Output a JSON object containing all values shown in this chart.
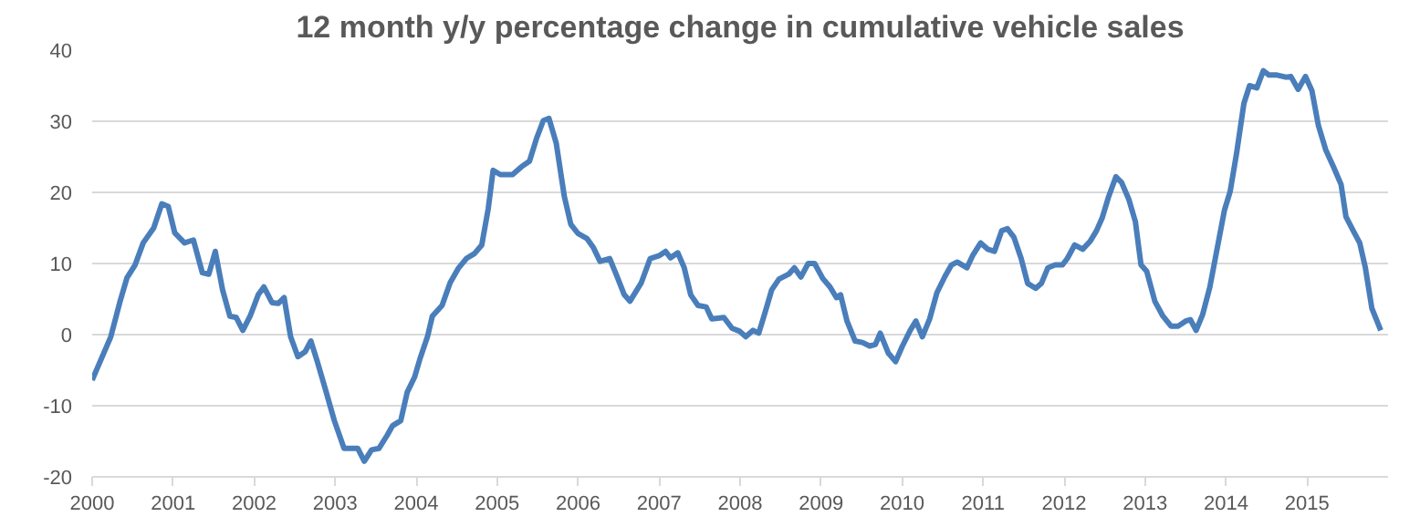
{
  "chart_data": {
    "type": "line",
    "title": "12 month y/y percentage change in cumulative vehicle sales",
    "x": [
      2000.0,
      2000.23,
      2000.34,
      2000.43,
      2000.53,
      2000.63,
      2000.76,
      2000.86,
      2000.94,
      2001.02,
      2001.14,
      2001.25,
      2001.36,
      2001.44,
      2001.52,
      2001.61,
      2001.7,
      2001.78,
      2001.86,
      2001.95,
      2002.05,
      2002.12,
      2002.22,
      2002.3,
      2002.37,
      2002.45,
      2002.54,
      2002.63,
      2002.7,
      2002.78,
      2002.88,
      2002.99,
      2003.11,
      2003.28,
      2003.36,
      2003.45,
      2003.54,
      2003.64,
      2003.71,
      2003.81,
      2003.89,
      2003.98,
      2004.05,
      2004.14,
      2004.2,
      2004.32,
      2004.42,
      2004.52,
      2004.62,
      2004.72,
      2004.81,
      2004.89,
      2004.95,
      2005.04,
      2005.19,
      2005.3,
      2005.4,
      2005.49,
      2005.57,
      2005.64,
      2005.73,
      2005.83,
      2005.91,
      2006.0,
      2006.11,
      2006.19,
      2006.27,
      2006.39,
      2006.48,
      2006.57,
      2006.64,
      2006.78,
      2006.89,
      2007.0,
      2007.08,
      2007.14,
      2007.23,
      2007.31,
      2007.39,
      2007.48,
      2007.58,
      2007.65,
      2007.8,
      2007.9,
      2007.99,
      2008.07,
      2008.16,
      2008.23,
      2008.3,
      2008.39,
      2008.48,
      2008.6,
      2008.67,
      2008.75,
      2008.84,
      2008.92,
      2009.02,
      2009.11,
      2009.19,
      2009.24,
      2009.32,
      2009.42,
      2009.51,
      2009.6,
      2009.67,
      2009.73,
      2009.83,
      2009.92,
      2010.0,
      2010.1,
      2010.17,
      2010.25,
      2010.34,
      2010.43,
      2010.53,
      2010.61,
      2010.68,
      2010.8,
      2010.87,
      2010.97,
      2011.06,
      2011.14,
      2011.23,
      2011.3,
      2011.38,
      2011.47,
      2011.55,
      2011.65,
      2011.72,
      2011.8,
      2011.89,
      2011.98,
      2012.04,
      2012.13,
      2012.23,
      2012.32,
      2012.4,
      2012.47,
      2012.55,
      2012.64,
      2012.71,
      2012.8,
      2012.88,
      2012.95,
      2013.02,
      2013.12,
      2013.22,
      2013.32,
      2013.41,
      2013.5,
      2013.56,
      2013.63,
      2013.71,
      2013.8,
      2013.88,
      2013.98,
      2014.05,
      2014.13,
      2014.22,
      2014.29,
      2014.38,
      2014.46,
      2014.53,
      2014.63,
      2014.74,
      2014.8,
      2014.89,
      2014.98,
      2015.06,
      2015.14,
      2015.23,
      2015.33,
      2015.42,
      2015.48,
      2015.57,
      2015.65,
      2015.72,
      2015.8,
      2015.91
    ],
    "series": [
      {
        "color": "#4a7ebb",
        "values": [
          -6.4,
          -0.3,
          4.5,
          8.0,
          9.8,
          12.9,
          15.0,
          18.4,
          18.0,
          14.3,
          12.9,
          13.3,
          8.7,
          8.5,
          11.7,
          6.3,
          2.6,
          2.4,
          0.6,
          2.6,
          5.6,
          6.7,
          4.5,
          4.4,
          5.2,
          -0.3,
          -3.1,
          -2.4,
          -0.9,
          -3.8,
          -7.7,
          -12.1,
          -16.0,
          -16.0,
          -17.8,
          -16.2,
          -16.0,
          -14.2,
          -12.8,
          -12.1,
          -8.1,
          -6.0,
          -3.3,
          -0.3,
          2.6,
          4.1,
          7.3,
          9.3,
          10.7,
          11.4,
          12.6,
          17.7,
          23.1,
          22.5,
          22.5,
          23.6,
          24.4,
          27.7,
          30.1,
          30.4,
          26.9,
          19.4,
          15.5,
          14.2,
          13.5,
          12.2,
          10.3,
          10.7,
          8.2,
          5.6,
          4.7,
          7.3,
          10.7,
          11.1,
          11.7,
          10.8,
          11.5,
          9.4,
          5.6,
          4.1,
          3.9,
          2.2,
          2.4,
          0.9,
          0.5,
          -0.3,
          0.6,
          0.2,
          2.8,
          6.3,
          7.8,
          8.5,
          9.4,
          8.1,
          10.0,
          10.0,
          7.9,
          6.7,
          5.2,
          5.6,
          1.9,
          -0.9,
          -1.1,
          -1.6,
          -1.4,
          0.2,
          -2.6,
          -3.8,
          -1.7,
          0.6,
          1.9,
          -0.3,
          2.2,
          5.9,
          8.2,
          9.8,
          10.2,
          9.4,
          11.1,
          12.9,
          12.0,
          11.7,
          14.6,
          14.9,
          13.7,
          10.7,
          7.2,
          6.5,
          7.2,
          9.4,
          9.8,
          9.8,
          10.7,
          12.6,
          12.0,
          13.1,
          14.6,
          16.4,
          19.4,
          22.2,
          21.4,
          19.0,
          15.9,
          9.8,
          8.9,
          4.7,
          2.6,
          1.2,
          1.2,
          1.9,
          2.1,
          0.6,
          2.8,
          6.7,
          11.5,
          17.5,
          20.1,
          25.5,
          32.5,
          35.0,
          34.7,
          37.1,
          36.5,
          36.5,
          36.2,
          36.3,
          34.5,
          36.3,
          34.3,
          29.4,
          26.0,
          23.5,
          21.1,
          16.6,
          14.6,
          12.9,
          9.4,
          3.7,
          0.6
        ]
      }
    ],
    "xlim": [
      2000,
      2016
    ],
    "xticks": [
      2000,
      2001,
      2002,
      2003,
      2004,
      2005,
      2006,
      2007,
      2008,
      2009,
      2010,
      2011,
      2012,
      2013,
      2014,
      2015
    ],
    "ylim": [
      -20,
      40
    ],
    "yticks": [
      -20,
      -10,
      0,
      10,
      20,
      30,
      40
    ],
    "grid": "y"
  }
}
